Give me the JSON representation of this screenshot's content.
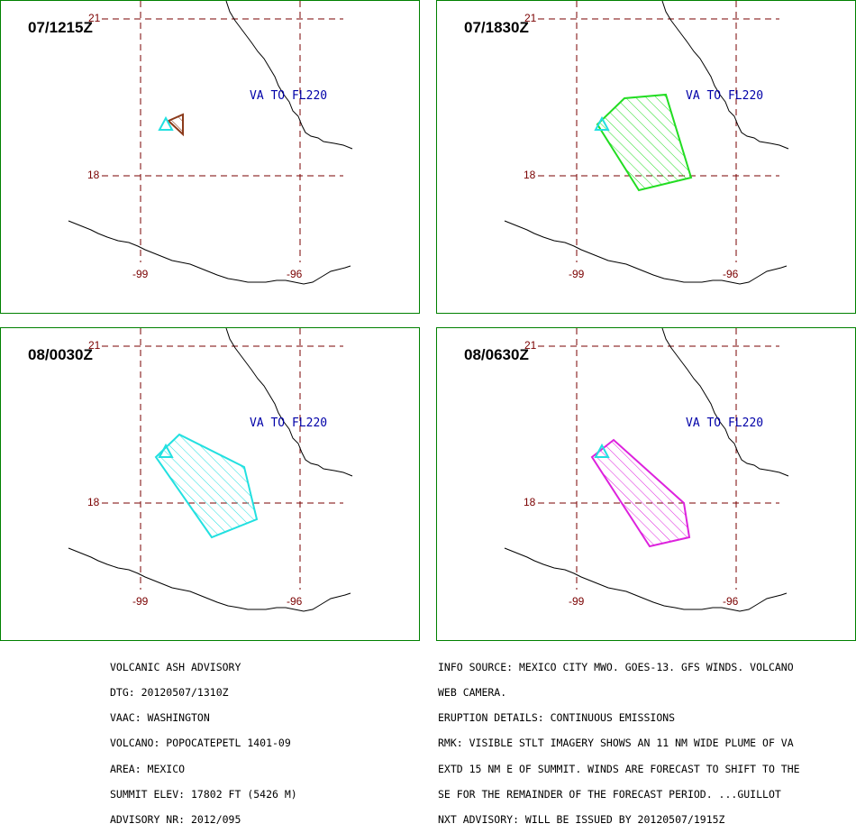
{
  "panels": [
    {
      "time": "07/1215Z",
      "va_label": "VA TO FL220",
      "lat_top": "21",
      "lat_mid": "18",
      "lon_left": "-99",
      "lon_right": "-96",
      "poly_color": "#8b3a1a"
    },
    {
      "time": "07/1830Z",
      "va_label": "VA TO FL220",
      "lat_top": "21",
      "lat_mid": "18",
      "lon_left": "-99",
      "lon_right": "-96",
      "poly_color": "#22dd22"
    },
    {
      "time": "08/0030Z",
      "va_label": "VA TO FL220",
      "lat_top": "21",
      "lat_mid": "18",
      "lon_left": "-99",
      "lon_right": "-96",
      "poly_color": "#22e0e0"
    },
    {
      "time": "08/0630Z",
      "va_label": "VA TO FL220",
      "lat_top": "21",
      "lat_mid": "18",
      "lon_left": "-99",
      "lon_right": "-96",
      "poly_color": "#dd22dd"
    }
  ],
  "advisory_left": [
    "VOLCANIC ASH ADVISORY",
    "DTG: 20120507/1310Z",
    "VAAC: WASHINGTON",
    "VOLCANO: POPOCATEPETL 1401-09",
    "AREA: MEXICO",
    "SUMMIT ELEV: 17802 FT (5426 M)",
    "ADVISORY NR: 2012/095"
  ],
  "advisory_right": [
    "INFO SOURCE: MEXICO CITY MWO. GOES-13. GFS WINDS. VOLCANO",
    "WEB CAMERA.",
    "ERUPTION DETAILS: CONTINUOUS EMISSIONS",
    "RMK: VISIBLE STLT IMAGERY SHOWS AN 11 NM WIDE PLUME OF VA",
    "EXTD 15 NM E OF SUMMIT. WINDS ARE FORECAST TO SHIFT TO THE",
    "SE FOR THE REMAINDER OF THE FORECAST PERIOD. ...GUILLOT",
    "NXT ADVISORY: WILL BE ISSUED BY 20120507/1915Z"
  ],
  "colors": {
    "grid": "#7a0000",
    "frame": "#008000",
    "va_label": "#0000a8",
    "volcano_marker": "#22e0e0"
  }
}
